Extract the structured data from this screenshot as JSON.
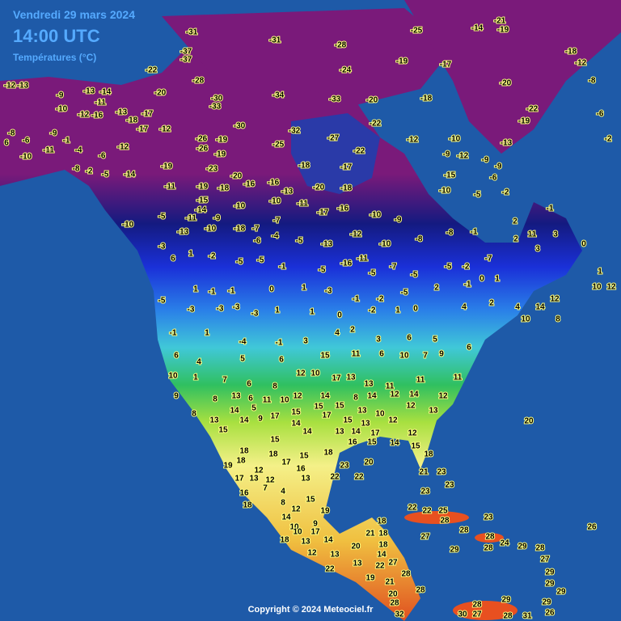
{
  "header": {
    "date": "Vendredi 29 mars 2024",
    "time": "14:00 UTC",
    "variable": "Températures (°C)"
  },
  "footer": {
    "copyright": "Copyright © 2024 Meteociel.fr"
  },
  "temperatures": [
    -31,
    -31,
    -28,
    -25,
    -14,
    -19,
    -21,
    -37,
    -37,
    -22,
    -28,
    -24,
    -19,
    -17,
    -20,
    -18,
    -12,
    -8,
    -12,
    -13,
    -9,
    -13,
    -14,
    -11,
    -20,
    -30,
    -33,
    -34,
    -33,
    -20,
    -18,
    -22,
    -10,
    -12,
    -16,
    -13,
    -17,
    -18,
    -17,
    -12,
    -30,
    -32,
    -22,
    -8,
    -6,
    -9,
    6,
    -10,
    -11,
    -1,
    -4,
    -6,
    -12,
    -26,
    -26,
    -19,
    -25,
    -27,
    -22,
    -12,
    -10,
    -13,
    -19,
    -6,
    -2,
    -8,
    -2,
    -5,
    -14,
    -19,
    -19,
    -23,
    -20,
    -16,
    -16,
    -18,
    -17,
    -20,
    -18,
    -9,
    -12,
    -15,
    -9,
    -9,
    -6,
    -11,
    -19,
    -18,
    -13,
    -15,
    -14,
    -10,
    -10,
    -11,
    -17,
    -16,
    -10,
    -9,
    -10,
    -5,
    -2,
    -1,
    2,
    11,
    3,
    2,
    3,
    0,
    1,
    10,
    12,
    -10,
    -5,
    -11,
    -9,
    -13,
    -10,
    -18,
    -7,
    -7,
    -6,
    -4,
    -5,
    -13,
    -12,
    -10,
    -8,
    -8,
    -1,
    -7,
    -3,
    6,
    1,
    -2,
    -5,
    -5,
    -1,
    -5,
    -16,
    -11,
    -5,
    -7,
    -5,
    -5,
    -2,
    1,
    -1,
    -1,
    0,
    1,
    -3,
    -1,
    -2,
    -5,
    2,
    -1,
    0,
    1,
    -5,
    -3,
    -3,
    -3,
    -3,
    1,
    1,
    0,
    -2,
    1,
    0,
    4,
    2,
    4,
    14,
    12,
    10,
    8,
    -1,
    1,
    -4,
    -1,
    3,
    4,
    2,
    3,
    6,
    5,
    6,
    6,
    4,
    5,
    6,
    15,
    11,
    6,
    10,
    7,
    9,
    10,
    1,
    7,
    6,
    8,
    12,
    10,
    17,
    13,
    13,
    11,
    11,
    11,
    9,
    8,
    13,
    6,
    11,
    10,
    12,
    14,
    8,
    14,
    12,
    14,
    12,
    8,
    14,
    5,
    17,
    15,
    15,
    15,
    13,
    10,
    12,
    13,
    13,
    14,
    9,
    14,
    17,
    15,
    13,
    12,
    20,
    15,
    18,
    15,
    14,
    13,
    14,
    17,
    12,
    18,
    18,
    15,
    18,
    16,
    15,
    14,
    15,
    19,
    12,
    17,
    16,
    23,
    20,
    18,
    17,
    13,
    12,
    13,
    22,
    22,
    21,
    23,
    16,
    7,
    4,
    15,
    23,
    23,
    18,
    8,
    12,
    19,
    14,
    10,
    9,
    22,
    22,
    25,
    28,
    23,
    17,
    14,
    18,
    21,
    18,
    18,
    10,
    13,
    27,
    28,
    28,
    26,
    12,
    13,
    20,
    18,
    14,
    29,
    28,
    24,
    29,
    28,
    22,
    13,
    22,
    27,
    27,
    19,
    21,
    28,
    28,
    29,
    29,
    20,
    28,
    29,
    29,
    29,
    28,
    32,
    30,
    27,
    28,
    31,
    26
  ]
}
